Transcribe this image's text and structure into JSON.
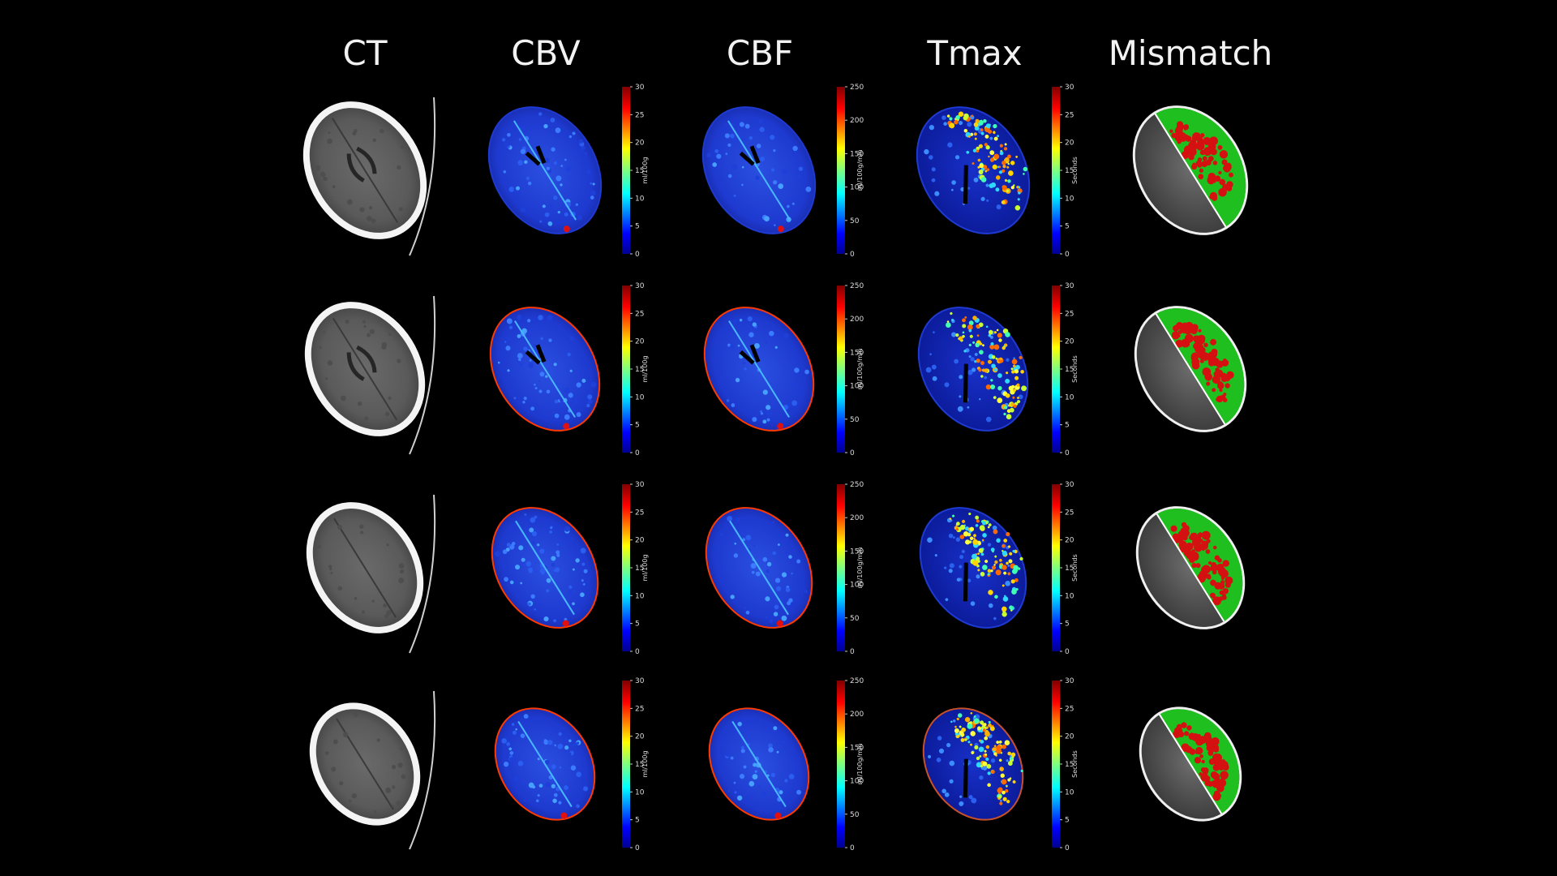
{
  "columns": [
    "CT",
    "CBV",
    "CBF",
    "Tmax",
    "Mismatch"
  ],
  "rows": 4,
  "colorbars": {
    "CBV": {
      "label": "ml/100g",
      "ticks": [
        "30",
        "25",
        "20",
        "15",
        "10",
        "5",
        "0"
      ]
    },
    "CBF": {
      "label": "ml/100g/min",
      "ticks": [
        "250",
        "200",
        "150",
        "100",
        "50",
        "0"
      ]
    },
    "Tmax": {
      "label": "Seconds",
      "ticks": [
        "30",
        "25",
        "20",
        "15",
        "10",
        "5",
        "0"
      ]
    }
  },
  "colors": {
    "background": "#000000",
    "perfusion_base": "#1f3fd8",
    "mismatch_core": "#d41010",
    "mismatch_penumbra": "#1fbf1f"
  }
}
